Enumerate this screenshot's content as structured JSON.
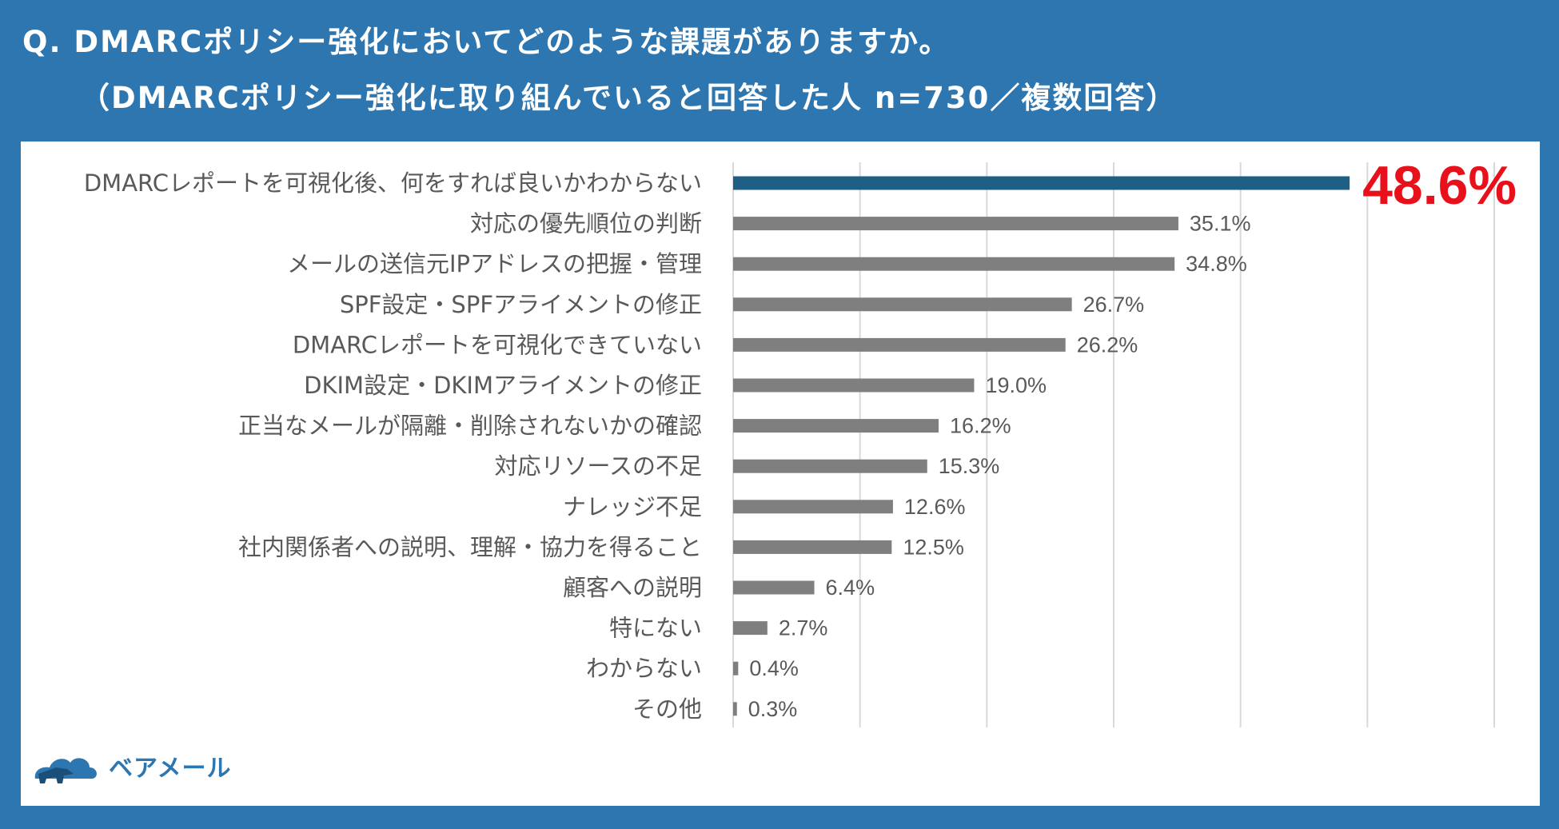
{
  "header": {
    "title": "Q. DMARCポリシー強化においてどのような課題がありますか。",
    "subtitle": "（DMARCポリシー強化に取り組んでいると回答した人 n=730／複数回答）"
  },
  "brand": {
    "name": "ベアメール",
    "icon": "bear-cloud-logo-icon"
  },
  "colors": {
    "background": "#2d76b0",
    "highlight_bar": "#1f5f86",
    "bar": "#7f7f7f",
    "highlight_label": "#e8101b",
    "label": "#595959",
    "grid": "#d9d9d9"
  },
  "chart_data": {
    "type": "bar",
    "orientation": "horizontal",
    "categories": [
      "DMARCレポートを可視化後、何をすれば良いかわからない",
      "対応の優先順位の判断",
      "メールの送信元IPアドレスの把握・管理",
      "SPF設定・SPFアライメントの修正",
      "DMARCレポートを可視化できていない",
      "DKIM設定・DKIMアライメントの修正",
      "正当なメールが隔離・削除されないかの確認",
      "対応リソースの不足",
      "ナレッジ不足",
      "社内関係者への説明、理解・協力を得ること",
      "顧客への説明",
      "特にない",
      "わからない",
      "その他"
    ],
    "values": [
      48.6,
      35.1,
      34.8,
      26.7,
      26.2,
      19.0,
      16.2,
      15.3,
      12.6,
      12.5,
      6.4,
      2.7,
      0.4,
      0.3
    ],
    "labels": [
      "48.6%",
      "35.1%",
      "34.8%",
      "26.7%",
      "26.2%",
      "19.0%",
      "16.2%",
      "15.3%",
      "12.6%",
      "12.5%",
      "6.4%",
      "2.7%",
      "0.4%",
      "0.3%"
    ],
    "highlight_index": 0,
    "xlim": [
      0,
      60
    ],
    "gridlines": [
      0,
      10,
      20,
      30,
      40,
      50,
      60
    ],
    "grid": true,
    "unit": "%"
  }
}
